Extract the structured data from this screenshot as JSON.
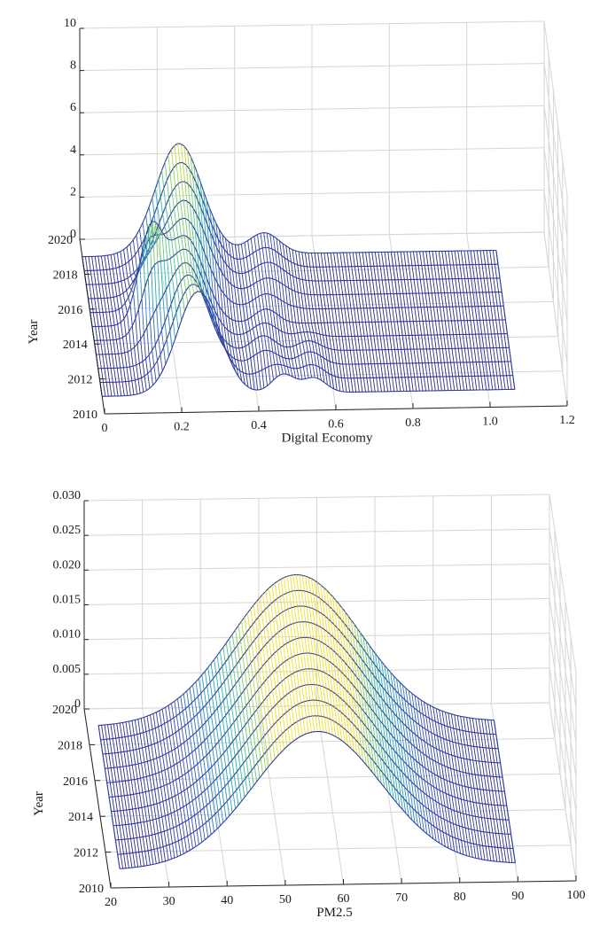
{
  "chart_data": [
    {
      "type": "surface",
      "xlabel": "Digital Economy",
      "ylabel": "Year",
      "zlabel": "",
      "xlim": [
        0,
        1.2
      ],
      "ylim": [
        2010,
        2020
      ],
      "zlim": [
        0,
        10
      ],
      "x_ticks": [
        "0",
        "0.2",
        "0.4",
        "0.6",
        "0.8",
        "1.0",
        "1.2"
      ],
      "y_ticks": [
        "2010",
        "2012",
        "2014",
        "2016",
        "2018",
        "2020"
      ],
      "z_ticks": [
        "0",
        "2",
        "4",
        "6",
        "8",
        "10"
      ],
      "grid": true,
      "colormap": [
        "#2b2b8c",
        "#3b4fb8",
        "#2c8fc7",
        "#2cb5b0",
        "#7ccf6b",
        "#f2e02a"
      ],
      "x_range": [
        0.0,
        1.07
      ],
      "series": [
        {
          "year": 2011,
          "peaks": [
            {
              "x": 0.25,
              "z": 4.9,
              "w": 0.055
            },
            {
              "x": 0.47,
              "z": 0.9,
              "w": 0.03
            },
            {
              "x": 0.55,
              "z": 0.7,
              "w": 0.03
            }
          ]
        },
        {
          "year": 2013,
          "peaks": [
            {
              "x": 0.23,
              "z": 4.3,
              "w": 0.05
            },
            {
              "x": 0.43,
              "z": 0.8,
              "w": 0.03
            },
            {
              "x": 0.55,
              "z": 0.6,
              "w": 0.03
            }
          ]
        },
        {
          "year": 2015,
          "peaks": [
            {
              "x": 0.15,
              "z": 4.0,
              "w": 0.03
            },
            {
              "x": 0.24,
              "z": 4.2,
              "w": 0.05
            },
            {
              "x": 0.45,
              "z": 0.7,
              "w": 0.03
            }
          ]
        },
        {
          "year": 2017,
          "peaks": [
            {
              "x": 0.25,
              "z": 4.7,
              "w": 0.06
            },
            {
              "x": 0.47,
              "z": 0.9,
              "w": 0.04
            }
          ]
        },
        {
          "year": 2019,
          "peaks": [
            {
              "x": 0.25,
              "z": 5.3,
              "w": 0.06
            },
            {
              "x": 0.47,
              "z": 1.0,
              "w": 0.04
            }
          ]
        }
      ]
    },
    {
      "type": "surface",
      "xlabel": "PM2.5",
      "ylabel": "Year",
      "zlabel": "",
      "xlim": [
        20,
        100
      ],
      "ylim": [
        2010,
        2020
      ],
      "zlim": [
        0,
        0.03
      ],
      "x_ticks": [
        "20",
        "30",
        "40",
        "50",
        "60",
        "70",
        "80",
        "90",
        "100"
      ],
      "y_ticks": [
        "2010",
        "2012",
        "2014",
        "2016",
        "2018",
        "2020"
      ],
      "z_ticks": [
        "0",
        "0.005",
        "0.010",
        "0.015",
        "0.020",
        "0.025",
        "0.030"
      ],
      "grid": true,
      "colormap": [
        "#2b2b8c",
        "#3b4fb8",
        "#2c8fc7",
        "#2cb5b0",
        "#7ccf6b",
        "#f2e02a"
      ],
      "x_range": [
        22,
        90
      ],
      "series": [
        {
          "year": 2011,
          "peaks": [
            {
              "x": 56,
              "z": 0.0195,
              "w": 11
            }
          ]
        },
        {
          "year": 2013,
          "peaks": [
            {
              "x": 56,
              "z": 0.02,
              "w": 11
            }
          ]
        },
        {
          "year": 2015,
          "peaks": [
            {
              "x": 56,
              "z": 0.0205,
              "w": 11
            }
          ]
        },
        {
          "year": 2017,
          "peaks": [
            {
              "x": 56,
              "z": 0.021,
              "w": 11
            }
          ]
        },
        {
          "year": 2019,
          "peaks": [
            {
              "x": 56,
              "z": 0.0215,
              "w": 11
            }
          ]
        }
      ]
    }
  ]
}
